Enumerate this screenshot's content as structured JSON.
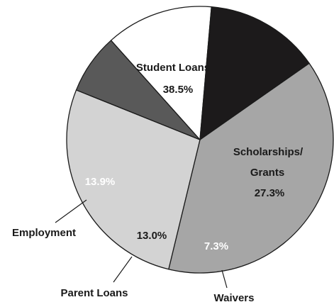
{
  "chart_data": {
    "type": "pie",
    "slices": [
      {
        "label": "Student Loans",
        "value": 38.5,
        "value_label": "38.5%",
        "color": "#a6a6a6",
        "label_color": "#1a1a1a"
      },
      {
        "label": "Scholarships/ Grants",
        "value": 27.3,
        "value_label": "27.3%",
        "color": "#d3d3d3",
        "label_color": "#1a1a1a"
      },
      {
        "label": "Waivers",
        "value": 7.3,
        "value_label": "7.3%",
        "color": "#595959",
        "label_color": "#ffffff"
      },
      {
        "label": "Parent Loans",
        "value": 13.0,
        "value_label": "13.0%",
        "color": "#ffffff",
        "label_color": "#1a1a1a"
      },
      {
        "label": "Employment",
        "value": 13.9,
        "value_label": "13.9%",
        "color": "#1c1a1b",
        "label_color": "#ffffff"
      }
    ],
    "legend": "none"
  },
  "texts": {
    "student_loans_name": "Student Loans",
    "student_loans_value": "38.5%",
    "scholarships_name_line1": "Scholarships/",
    "scholarships_name_line2": "Grants",
    "scholarships_value": "27.3%",
    "waivers_name": "Waivers",
    "waivers_value": "7.3%",
    "parent_loans_name": "Parent Loans",
    "parent_loans_value": "13.0%",
    "employment_name": "Employment",
    "employment_value": "13.9%"
  }
}
